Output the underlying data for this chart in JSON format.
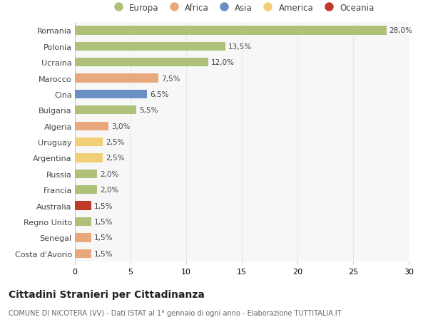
{
  "countries": [
    "Romania",
    "Polonia",
    "Ucraina",
    "Marocco",
    "Cina",
    "Bulgaria",
    "Algeria",
    "Uruguay",
    "Argentina",
    "Russia",
    "Francia",
    "Australia",
    "Regno Unito",
    "Senegal",
    "Costa d'Avorio"
  ],
  "values": [
    28.0,
    13.5,
    12.0,
    7.5,
    6.5,
    5.5,
    3.0,
    2.5,
    2.5,
    2.0,
    2.0,
    1.5,
    1.5,
    1.5,
    1.5
  ],
  "labels": [
    "28,0%",
    "13,5%",
    "12,0%",
    "7,5%",
    "6,5%",
    "5,5%",
    "3,0%",
    "2,5%",
    "2,5%",
    "2,0%",
    "2,0%",
    "1,5%",
    "1,5%",
    "1,5%",
    "1,5%"
  ],
  "colors": [
    "#adc178",
    "#adc178",
    "#adc178",
    "#e8a87c",
    "#6b8ec4",
    "#adc178",
    "#e8a87c",
    "#f0cf77",
    "#f0cf77",
    "#adc178",
    "#adc178",
    "#c0392b",
    "#adc178",
    "#e8a87c",
    "#e8a87c"
  ],
  "legend_items": [
    {
      "label": "Europa",
      "color": "#adc178"
    },
    {
      "label": "Africa",
      "color": "#e8a87c"
    },
    {
      "label": "Asia",
      "color": "#6b8ec4"
    },
    {
      "label": "America",
      "color": "#f0cf77"
    },
    {
      "label": "Oceania",
      "color": "#c0392b"
    }
  ],
  "title": "Cittadini Stranieri per Cittadinanza",
  "subtitle": "COMUNE DI NICOTERA (VV) - Dati ISTAT al 1° gennaio di ogni anno - Elaborazione TUTTITALIA.IT",
  "xlim": [
    0,
    30
  ],
  "xticks": [
    0,
    5,
    10,
    15,
    20,
    25,
    30
  ],
  "background_color": "#ffffff",
  "plot_bg_color": "#f7f7f7",
  "grid_color": "#e8e8e8",
  "bar_height": 0.55
}
